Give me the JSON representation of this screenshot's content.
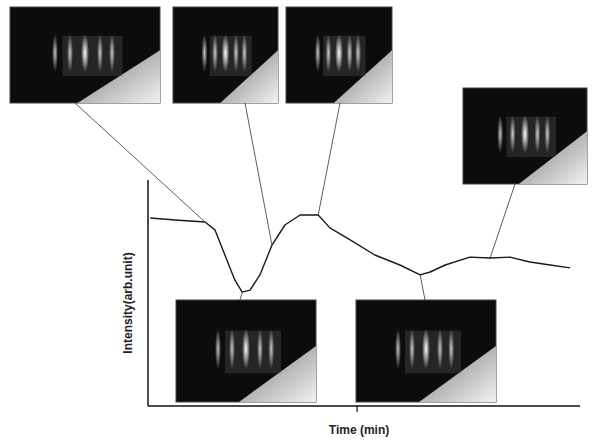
{
  "chart_data": {
    "type": "line",
    "x_label": "Time (min)",
    "y_label": "Intensity(arb.unit)",
    "x": [
      0.5,
      6.3,
      13.2,
      15.5,
      17.8,
      20.1,
      21.8,
      23.6,
      25.9,
      28.7,
      31.7,
      35.2,
      39.4,
      42.1,
      46.8,
      52.5,
      58.3,
      63.0,
      65.3,
      68.8,
      74.5,
      79.2,
      83.8,
      88.4,
      93.1,
      97.7
    ],
    "values": [
      83.2,
      82.3,
      81.4,
      77.9,
      66.8,
      55.8,
      50.4,
      51.3,
      58.0,
      71.2,
      80.1,
      84.5,
      84.5,
      78.8,
      73.5,
      66.8,
      62.4,
      58.0,
      59.3,
      62.4,
      65.9,
      65.5,
      65.9,
      63.7,
      62.4,
      61.1
    ],
    "color": "#1a1a1a",
    "xlim": [
      0,
      100
    ],
    "ylim": [
      0,
      100
    ],
    "xticks": [
      48.4
    ],
    "yticks": [],
    "tick_labels": false,
    "grid": false
  }
}
